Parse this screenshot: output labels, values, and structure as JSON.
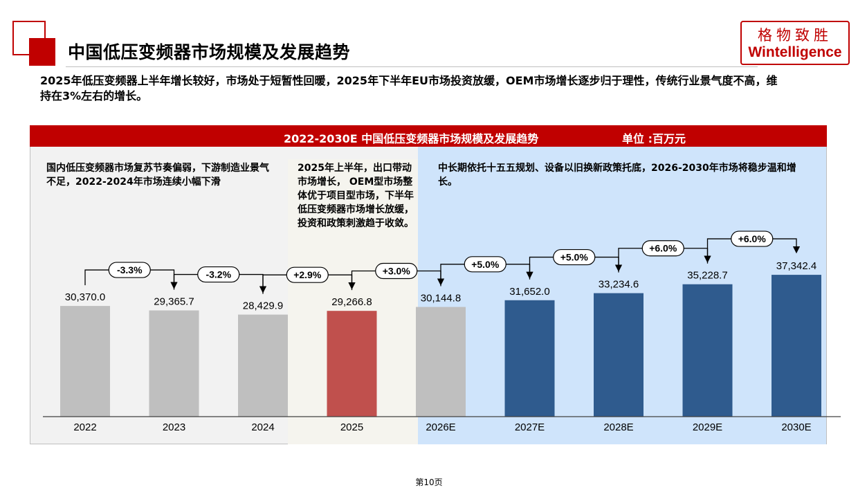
{
  "header": {
    "title": "中国低压变频器市场规模及发展趋势",
    "logo_cn": "格物致胜",
    "logo_en": "Wintelligence"
  },
  "summary": "2025年低压变频器上半年增长较好，市场处于短暂性回暖，2025年下半年EU市场投资放缓，OEM市场增长逐步归于理性，传统行业景气度不高，维持在3%左右的增长。",
  "chart_data": {
    "type": "bar",
    "title": "2022-2030E 中国低压变频器市场规模及发展趋势",
    "unit": "单位 :百万元",
    "categories": [
      "2022",
      "2023",
      "2024",
      "2025",
      "2026E",
      "2027E",
      "2028E",
      "2029E",
      "2030E"
    ],
    "values": [
      30370.0,
      29365.7,
      28429.9,
      29266.8,
      30144.8,
      31652.0,
      33234.6,
      35228.7,
      37342.4
    ],
    "value_labels": [
      "30,370.0",
      "29,365.7",
      "28,429.9",
      "29,266.8",
      "30,144.8",
      "31,652.0",
      "33,234.6",
      "35,228.7",
      "37,342.4"
    ],
    "bar_colors": [
      "#bfbfbf",
      "#bfbfbf",
      "#bfbfbf",
      "#c0504d",
      "#bfbfbf",
      "#2f5b8e",
      "#2f5b8e",
      "#2f5b8e",
      "#2f5b8e"
    ],
    "growth_labels": [
      "-3.3%",
      "-3.2%",
      "+2.9%",
      "+3.0%",
      "+5.0%",
      "+5.0%",
      "+6.0%",
      "+6.0%"
    ],
    "annotations": [
      "国内低压变频器市场复苏节奏偏弱，下游制造业景气不足，2022-2024年市场连续小幅下滑",
      "2025年上半年，出口带动市场增长， OEM型市场整体优于项目型市场，下半年低压变频器市场增长放缓， 投资和政策刺激趋于收敛。",
      "中长期依托十五五规划、设备以旧换新政策托底，2026-2030年市场将稳步温和增长。"
    ]
  },
  "footer": {
    "page": "第10页"
  }
}
